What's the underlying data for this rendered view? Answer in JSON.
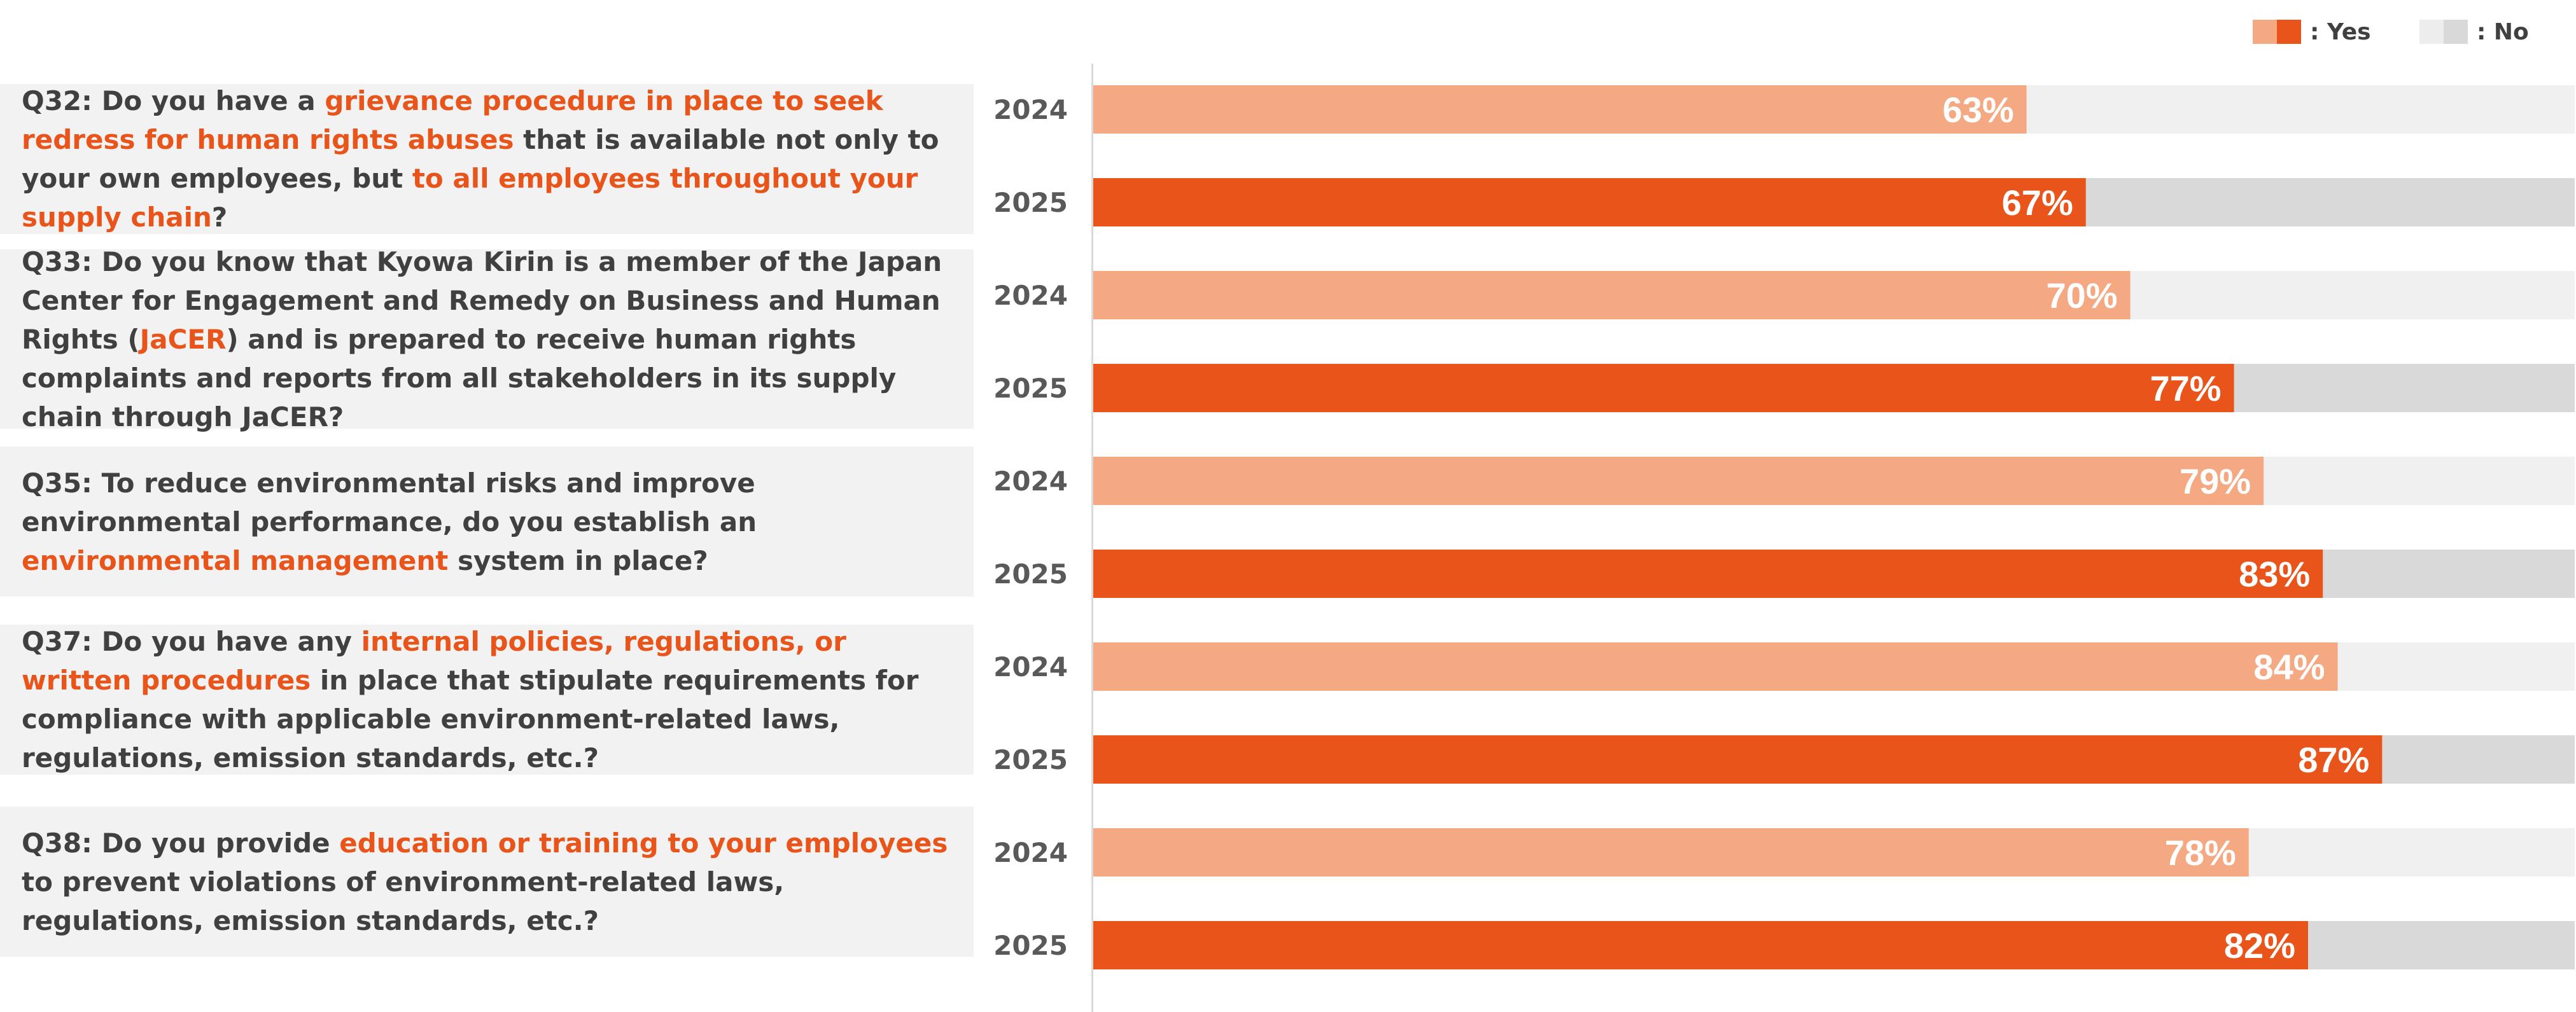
{
  "legend": {
    "yes_label": ": Yes",
    "no_label": ": No",
    "yes_colors": [
      "#f4a983",
      "#e8541a"
    ],
    "no_colors": [
      "#ededed",
      "#d9d9d9"
    ]
  },
  "colors": {
    "yes_2024": "#f4a983",
    "yes_2025": "#e8541a",
    "no_2024": "#f0f0f0",
    "no_2025": "#d9d9d9",
    "highlight_text": "#e8541a",
    "question_text": "#404040",
    "question_bg": "#f2f2f2"
  },
  "questions": [
    {
      "id": "Q32",
      "segments": [
        {
          "text": "Q32: Do you have a ",
          "hl": false
        },
        {
          "text": "grievance procedure in place to seek redress for human rights abuses",
          "hl": true
        },
        {
          "text": " that is available not only to your own employees, but ",
          "hl": false
        },
        {
          "text": "to all employees throughout your supply chain",
          "hl": true
        },
        {
          "text": "?",
          "hl": false
        }
      ]
    },
    {
      "id": "Q33",
      "segments": [
        {
          "text": "Q33: Do you know that Kyowa Kirin is a member of the Japan Center for Engagement and Remedy on Business and Human Rights (",
          "hl": false
        },
        {
          "text": "JaCER",
          "hl": true
        },
        {
          "text": ") and is prepared to receive human rights complaints and reports from all stakeholders in its supply chain through JaCER?",
          "hl": false
        }
      ]
    },
    {
      "id": "Q35",
      "segments": [
        {
          "text": "Q35: To reduce environmental risks and improve environmental performance, do you establish an ",
          "hl": false
        },
        {
          "text": "environmental management",
          "hl": true
        },
        {
          "text": " system in place?",
          "hl": false
        }
      ]
    },
    {
      "id": "Q37",
      "segments": [
        {
          "text": "Q37: Do you have any ",
          "hl": false
        },
        {
          "text": "internal policies, regulations, or written procedures",
          "hl": true
        },
        {
          "text": " in place that stipulate requirements for compliance with applicable environment-related laws, regulations, emission standards, etc.?",
          "hl": false
        }
      ]
    },
    {
      "id": "Q38",
      "segments": [
        {
          "text": "Q38: Do you provide ",
          "hl": false
        },
        {
          "text": "education or training to your employees",
          "hl": true
        },
        {
          "text": " to prevent violations of environment-related laws, regulations, emission standards, etc.?",
          "hl": false
        }
      ]
    }
  ],
  "chart_data": {
    "type": "bar",
    "orientation": "horizontal",
    "stacked_percent": true,
    "categories": [
      "Q32",
      "Q33",
      "Q35",
      "Q37",
      "Q38"
    ],
    "years": [
      "2024",
      "2025"
    ],
    "series": [
      {
        "name": ": Yes",
        "year_values": {
          "2024": [
            63,
            70,
            79,
            84,
            78
          ],
          "2025": [
            67,
            77,
            83,
            87,
            82
          ]
        }
      },
      {
        "name": ": No",
        "year_values": {
          "2024": [
            37,
            30,
            21,
            16,
            22
          ],
          "2025": [
            33,
            23,
            17,
            13,
            18
          ]
        }
      }
    ],
    "value_labels": {
      "2024": [
        "63%",
        "70%",
        "79%",
        "84%",
        "78%"
      ],
      "2025": [
        "67%",
        "77%",
        "83%",
        "87%",
        "82%"
      ]
    },
    "xlim": [
      0,
      100
    ],
    "legend_position": "top-right",
    "grid": false
  }
}
